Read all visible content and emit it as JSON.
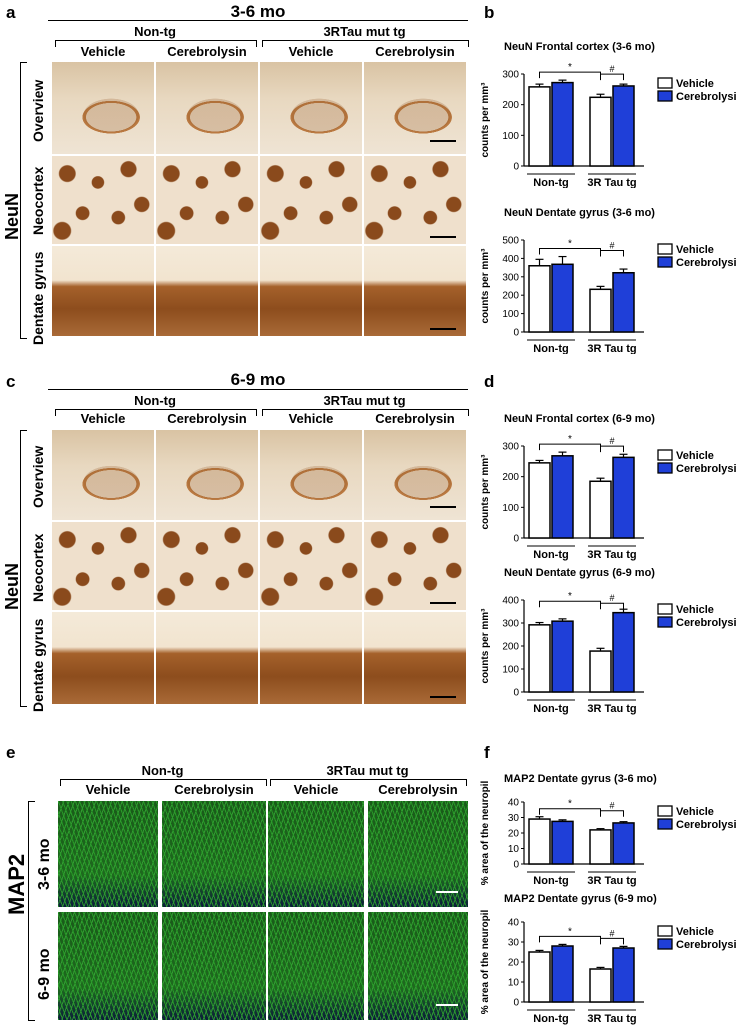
{
  "panels": {
    "a": "a",
    "b": "b",
    "c": "c",
    "d": "d",
    "e": "e",
    "f": "f"
  },
  "section_a": {
    "title": "3-6 mo",
    "groups": [
      "Non-tg",
      "3RTau mut tg"
    ],
    "columns": [
      "Vehicle",
      "Cerebrolysin",
      "Vehicle",
      "Cerebrolysin"
    ],
    "rows": [
      "Overview",
      "Neocortex",
      "Dentate gyrus"
    ],
    "stain": "NeuN"
  },
  "section_c": {
    "title": "6-9 mo",
    "groups": [
      "Non-tg",
      "3RTau mut tg"
    ],
    "columns": [
      "Vehicle",
      "Cerebrolysin",
      "Vehicle",
      "Cerebrolysin"
    ],
    "rows": [
      "Overview",
      "Neocortex",
      "Dentate gyrus"
    ],
    "stain": "NeuN"
  },
  "section_e": {
    "groups": [
      "Non-tg",
      "3RTau mut tg"
    ],
    "columns": [
      "Vehicle",
      "Cerebrolysin",
      "Vehicle",
      "Cerebrolysin"
    ],
    "rows": [
      "3-6 mo",
      "6-9 mo"
    ],
    "stain": "MAP2"
  },
  "legend": {
    "vehicle": "Vehicle",
    "cerebrolysin": "Cerebrolysin"
  },
  "colors": {
    "vehicle": "#ffffff",
    "cerebrolysin": "#1f3fd8",
    "stroke": "#000000"
  },
  "chart_data": [
    {
      "id": "b1",
      "type": "bar",
      "title": "NeuN  Frontal cortex (3-6 mo)",
      "ylabel": "counts per mm³",
      "groups": [
        "Non-tg",
        "3R Tau tg"
      ],
      "ylim": [
        0,
        300
      ],
      "yticks": [
        0,
        100,
        200,
        300
      ],
      "series": [
        {
          "name": "Vehicle",
          "values": [
            258,
            224
          ],
          "errors": [
            9,
            10
          ]
        },
        {
          "name": "Cerebrolysin",
          "values": [
            272,
            261
          ],
          "errors": [
            8,
            6
          ]
        }
      ],
      "sig": [
        {
          "mark": "*"
        },
        {
          "mark": "#"
        }
      ]
    },
    {
      "id": "b2",
      "type": "bar",
      "title": "NeuN Dentate gyrus (3-6 mo)",
      "ylabel": "counts per mm³",
      "groups": [
        "Non-tg",
        "3R Tau tg"
      ],
      "ylim": [
        0,
        500
      ],
      "yticks": [
        0,
        100,
        200,
        300,
        400,
        500
      ],
      "series": [
        {
          "name": "Vehicle",
          "values": [
            360,
            232
          ],
          "errors": [
            35,
            16
          ]
        },
        {
          "name": "Cerebrolysin",
          "values": [
            368,
            322
          ],
          "errors": [
            42,
            20
          ]
        }
      ],
      "sig": [
        {
          "mark": "*"
        },
        {
          "mark": "#"
        }
      ]
    },
    {
      "id": "d1",
      "type": "bar",
      "title": "NeuN Frontal cortex (6-9 mo)",
      "ylabel": "counts per mm³",
      "groups": [
        "Non-tg",
        "3R Tau tg"
      ],
      "ylim": [
        0,
        300
      ],
      "yticks": [
        0,
        100,
        200,
        300
      ],
      "series": [
        {
          "name": "Vehicle",
          "values": [
            245,
            185
          ],
          "errors": [
            8,
            10
          ]
        },
        {
          "name": "Cerebrolysin",
          "values": [
            268,
            263
          ],
          "errors": [
            12,
            10
          ]
        }
      ],
      "sig": [
        {
          "mark": "*"
        },
        {
          "mark": "#"
        }
      ]
    },
    {
      "id": "d2",
      "type": "bar",
      "title": "NeuN Dentate gyrus (6-9 mo)",
      "ylabel": "counts per mm³",
      "groups": [
        "Non-tg",
        "3R Tau tg"
      ],
      "ylim": [
        0,
        400
      ],
      "yticks": [
        0,
        100,
        200,
        300,
        400
      ],
      "series": [
        {
          "name": "Vehicle",
          "values": [
            292,
            178
          ],
          "errors": [
            10,
            12
          ]
        },
        {
          "name": "Cerebrolysin",
          "values": [
            308,
            345
          ],
          "errors": [
            10,
            15
          ]
        }
      ],
      "sig": [
        {
          "mark": "*"
        },
        {
          "mark": "#"
        }
      ]
    },
    {
      "id": "f1",
      "type": "bar",
      "title": "MAP2 Dentate gyrus (3-6 mo)",
      "ylabel": "% area of the neuropil",
      "groups": [
        "Non-tg",
        "3R Tau tg"
      ],
      "ylim": [
        0,
        40
      ],
      "yticks": [
        0,
        10,
        20,
        30,
        40
      ],
      "series": [
        {
          "name": "Vehicle",
          "values": [
            29,
            22
          ],
          "errors": [
            1.5,
            0.8
          ]
        },
        {
          "name": "Cerebrolysin",
          "values": [
            27.5,
            26.5
          ],
          "errors": [
            1.0,
            0.8
          ]
        }
      ],
      "sig": [
        {
          "mark": "*"
        },
        {
          "mark": "#"
        }
      ]
    },
    {
      "id": "f2",
      "type": "bar",
      "title": "MAP2 Dentate gyrus (6-9 mo)",
      "ylabel": "% area of the neuropil",
      "groups": [
        "Non-tg",
        "3R Tau tg"
      ],
      "ylim": [
        0,
        40
      ],
      "yticks": [
        0,
        10,
        20,
        30,
        40
      ],
      "series": [
        {
          "name": "Vehicle",
          "values": [
            25,
            16.5
          ],
          "errors": [
            0.8,
            0.8
          ]
        },
        {
          "name": "Cerebrolysin",
          "values": [
            28,
            27
          ],
          "errors": [
            0.8,
            0.8
          ]
        }
      ],
      "sig": [
        {
          "mark": "*"
        },
        {
          "mark": "#"
        }
      ]
    }
  ]
}
